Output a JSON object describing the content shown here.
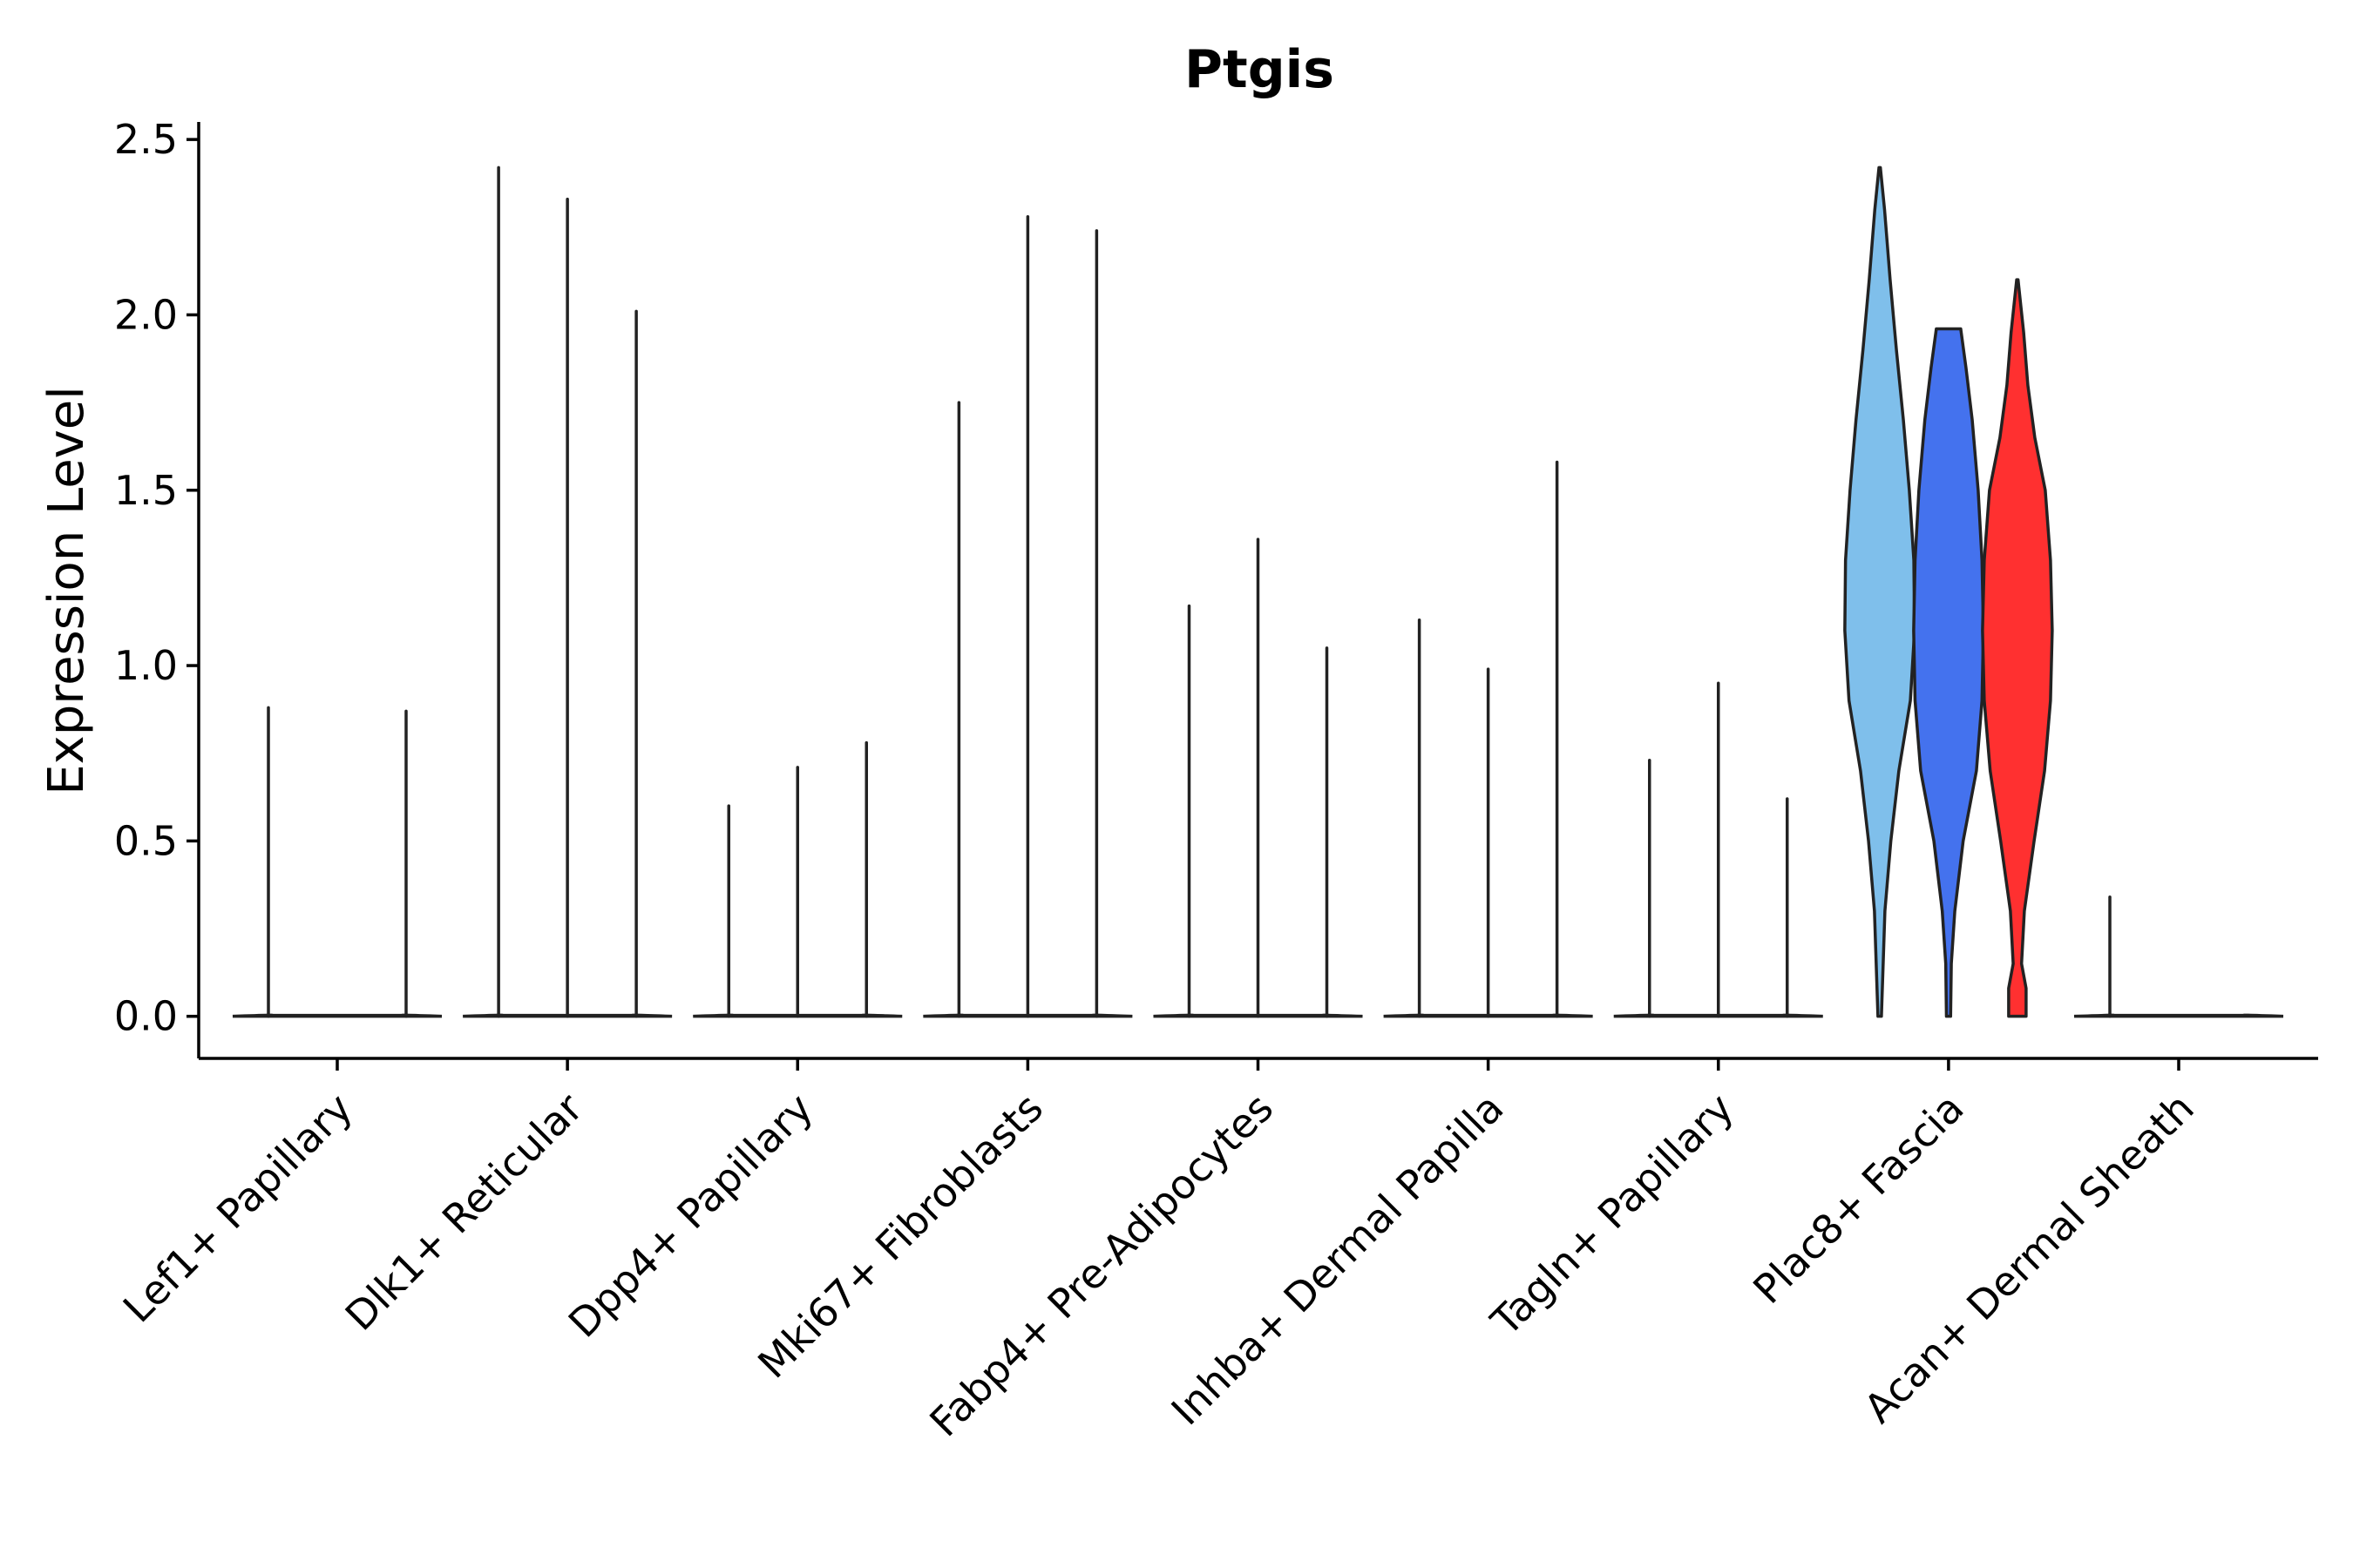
{
  "chart_data": {
    "type": "violin",
    "title": "Ptgis",
    "xlabel": "",
    "ylabel": "Expression Level",
    "ylim": [
      -0.12,
      2.55
    ],
    "yticks": [
      "0.0",
      "0.5",
      "1.0",
      "1.5",
      "2.0",
      "2.5"
    ],
    "ytick_values": [
      0,
      0.5,
      1.0,
      1.5,
      2.0,
      2.5
    ],
    "grid": false,
    "legend": "none",
    "categories": [
      {
        "label": "Lef1+ Papillary",
        "max_values": [
          0.88,
          0,
          0.87
        ],
        "fill": "#ffffff",
        "body": null
      },
      {
        "label": "Dlk1+ Reticular",
        "max_values": [
          2.42,
          2.33,
          2.01
        ],
        "fill": "#ffffff",
        "body": null
      },
      {
        "label": "Dpp4+ Papillary",
        "max_values": [
          0.6,
          0.71,
          0.78
        ],
        "fill": "#ffffff",
        "body": null
      },
      {
        "label": "Mki67+ Fibroblasts",
        "max_values": [
          1.75,
          2.28,
          2.24
        ],
        "fill": "#ffffff",
        "body": null
      },
      {
        "label": "Fabp4+ Pre-Adipocytes",
        "max_values": [
          1.17,
          1.36,
          1.05
        ],
        "fill": "#ffffff",
        "body": null
      },
      {
        "label": "Inhba+ Dermal Papilla",
        "max_values": [
          1.13,
          0.99,
          1.58
        ],
        "fill": "#ffffff",
        "body": null
      },
      {
        "label": "Tagln+ Papillary",
        "max_values": [
          0.73,
          0.95,
          0.62
        ],
        "fill": "#ffffff",
        "body": null
      },
      {
        "label": "Plac8+ Fascia",
        "max_values": [
          2.42,
          1.96,
          2.1
        ],
        "fill": "#ffffff",
        "body": [
          {
            "name": "sub-violin-left",
            "color": "#7fbfeb",
            "offset": -0.3,
            "profile": [
              [
                0,
                0.05
              ],
              [
                0.15,
                0.1
              ],
              [
                0.3,
                0.15
              ],
              [
                0.5,
                0.32
              ],
              [
                0.7,
                0.55
              ],
              [
                0.9,
                0.88
              ],
              [
                1.1,
                1.0
              ],
              [
                1.3,
                0.98
              ],
              [
                1.5,
                0.85
              ],
              [
                1.7,
                0.68
              ],
              [
                1.9,
                0.48
              ],
              [
                2.1,
                0.3
              ],
              [
                2.3,
                0.14
              ],
              [
                2.42,
                0.02
              ]
            ]
          },
          {
            "name": "sub-violin-center",
            "color": "#4472ee",
            "offset": 0,
            "profile": [
              [
                0,
                0.06
              ],
              [
                0.15,
                0.08
              ],
              [
                0.3,
                0.18
              ],
              [
                0.5,
                0.42
              ],
              [
                0.7,
                0.8
              ],
              [
                0.9,
                0.96
              ],
              [
                1.1,
                1.0
              ],
              [
                1.3,
                0.96
              ],
              [
                1.5,
                0.85
              ],
              [
                1.7,
                0.68
              ],
              [
                1.85,
                0.5
              ],
              [
                1.96,
                0.35
              ]
            ]
          },
          {
            "name": "sub-violin-right",
            "color": "#ff3030",
            "offset": 0.3,
            "profile": [
              [
                0,
                0.25
              ],
              [
                0.08,
                0.25
              ],
              [
                0.15,
                0.12
              ],
              [
                0.3,
                0.2
              ],
              [
                0.5,
                0.48
              ],
              [
                0.7,
                0.78
              ],
              [
                0.9,
                0.95
              ],
              [
                1.1,
                1.0
              ],
              [
                1.3,
                0.95
              ],
              [
                1.5,
                0.8
              ],
              [
                1.65,
                0.5
              ],
              [
                1.8,
                0.3
              ],
              [
                1.95,
                0.18
              ],
              [
                2.1,
                0.02
              ]
            ]
          }
        ]
      },
      {
        "label": "Acan+ Dermal Sheath",
        "max_values": [
          0.34,
          0,
          0
        ],
        "fill": "#ffffff",
        "body": null
      }
    ]
  }
}
